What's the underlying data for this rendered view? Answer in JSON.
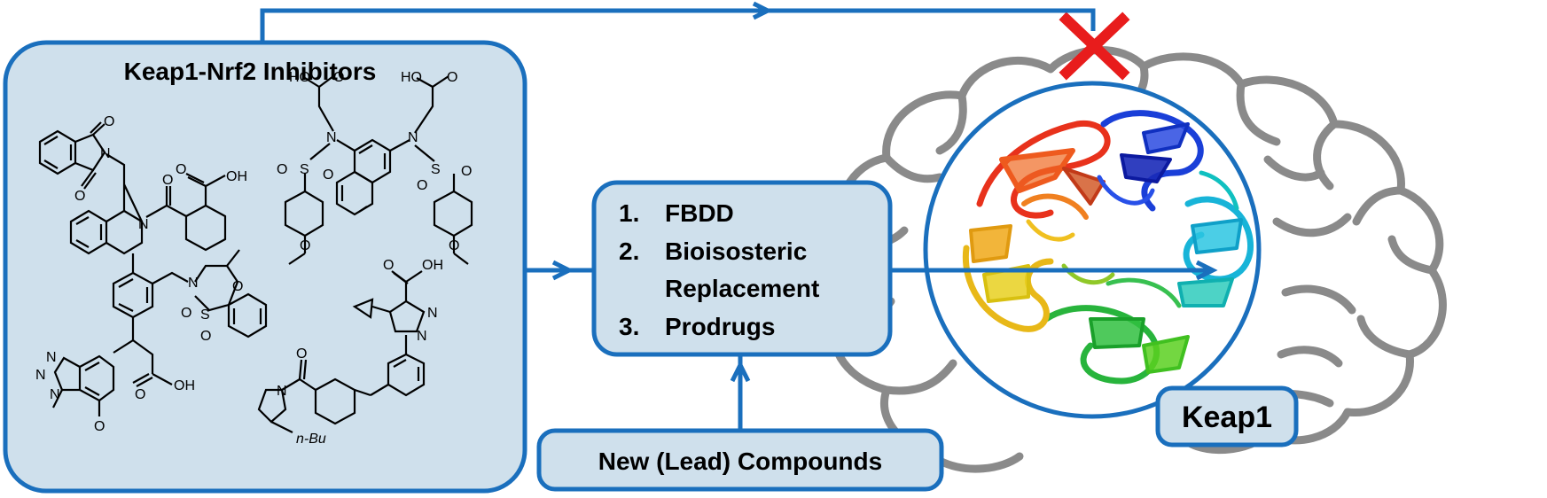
{
  "inhibitors_panel": {
    "title": "Keap1-Nrf2 Inhibitors",
    "molecule_labels": {
      "m1_o_top": "O",
      "m1_n": "N",
      "m1_o_bottom": "O",
      "m1_n_ring": "N",
      "m1_o_carbonyl": "O",
      "m1_oh": "OH",
      "m1_o_acid": "O",
      "m2_ho_left": "HO",
      "m2_o_left": "O",
      "m2_ho_right": "HO",
      "m2_o_right": "O",
      "m2_n_left": "N",
      "m2_n_right": "N",
      "m2_s_left": "S",
      "m2_s_right": "S",
      "m2_o1": "O",
      "m2_o2": "O",
      "m2_o3": "O",
      "m2_o4": "O",
      "m2_ome_left": "O",
      "m2_ome_right": "O",
      "m3_n_top": "N",
      "m3_o_ring": "O",
      "m3_s": "S",
      "m3_so1": "O",
      "m3_so2": "O",
      "m3_n1": "N",
      "m3_n2": "N",
      "m3_n3": "N",
      "m3_o_methoxy": "O",
      "m3_o_acid": "O",
      "m3_oh": "OH",
      "m4_oh": "OH",
      "m4_o_acid": "O",
      "m4_n1": "N",
      "m4_n2": "N",
      "m4_o_amide": "O",
      "m4_n_pyr": "N",
      "m4_nbu": "n-Bu"
    }
  },
  "strategy_box": {
    "items": [
      {
        "number": "1.",
        "lines": [
          "FBDD"
        ]
      },
      {
        "number": "2.",
        "lines": [
          "Bioisosteric",
          "Replacement"
        ]
      },
      {
        "number": "3.",
        "lines": [
          "Prodrugs"
        ]
      }
    ]
  },
  "lead_box": {
    "label": "New (Lead) Compounds"
  },
  "target_label": {
    "label": "Keap1"
  },
  "colors": {
    "arrow_blue": "#1a6fbd",
    "panel_fill": "#cfe0ec",
    "panel_border": "#1a6fbd",
    "cross_red": "#e81c1c",
    "brain_outline": "#8a8a8a"
  }
}
